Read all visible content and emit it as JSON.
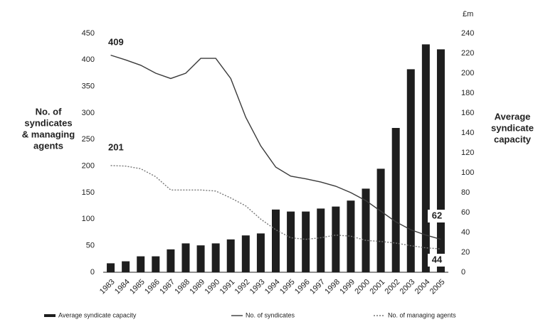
{
  "chart_data": {
    "type": "bar-line",
    "y_label": [
      "No. of",
      "syndicates",
      "& managing",
      "agents"
    ],
    "y2_label": [
      "Average",
      "syndicate",
      "capacity"
    ],
    "y2_unit": "£m",
    "categories": [
      "1983",
      "1984",
      "1985",
      "1986",
      "1987",
      "1988",
      "1989",
      "1990",
      "1991",
      "1992",
      "1993",
      "1994",
      "1995",
      "1996",
      "1997",
      "1998",
      "1999",
      "2000",
      "2001",
      "2002",
      "2003",
      "2004",
      "2005"
    ],
    "series": [
      {
        "name": "Average syndicate capacity",
        "type": "bar",
        "axis": "y2",
        "color": "#1e1e1e",
        "values": [
          9,
          11,
          16,
          16,
          23,
          29,
          27,
          29,
          33,
          37,
          39,
          63,
          61,
          61,
          64,
          66,
          72,
          84,
          104,
          145,
          204,
          229,
          224
        ]
      },
      {
        "name": "No. of syndicates",
        "type": "line",
        "color": "#3a3a3a",
        "values": [
          409,
          400,
          390,
          375,
          365,
          375,
          403,
          403,
          365,
          292,
          238,
          198,
          181,
          176,
          170,
          162,
          150,
          135,
          115,
          95,
          80,
          70,
          62
        ]
      },
      {
        "name": "No. of managing agents",
        "type": "line",
        "dashed": true,
        "color": "#777777",
        "values": [
          201,
          200,
          195,
          180,
          155,
          155,
          155,
          153,
          140,
          125,
          100,
          80,
          65,
          62,
          65,
          70,
          68,
          60,
          58,
          55,
          50,
          46,
          44
        ]
      }
    ],
    "annotations": [
      "409",
      "201",
      "62",
      "44"
    ],
    "ylim": [
      0,
      450
    ],
    "yticks": [
      0,
      50,
      100,
      150,
      200,
      250,
      300,
      350,
      400,
      450
    ],
    "y2lim": [
      0,
      240
    ],
    "y2ticks": [
      0,
      20,
      40,
      60,
      80,
      100,
      120,
      140,
      160,
      180,
      200,
      220,
      240
    ]
  }
}
